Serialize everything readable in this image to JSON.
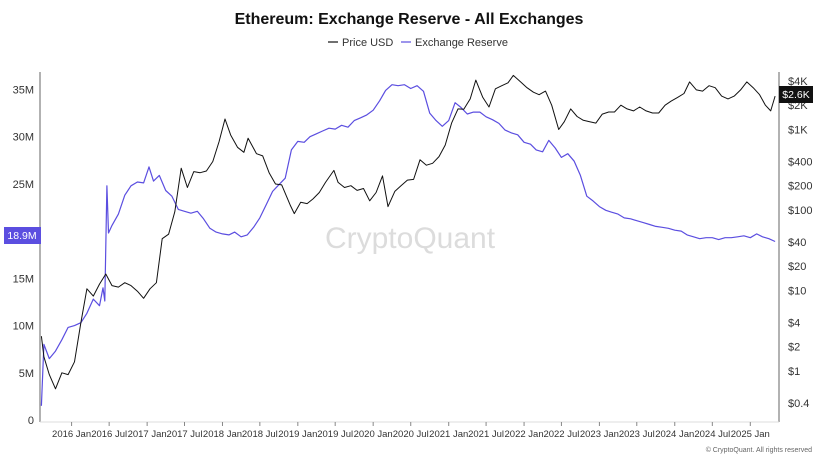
{
  "chart_data": {
    "type": "line",
    "title": "Ethereum: Exchange Reserve - All Exchanges",
    "legend": [
      {
        "name": "Price USD",
        "color": "#111111"
      },
      {
        "name": "Exchange Reserve",
        "color": "#5b4ee0"
      }
    ],
    "legend_position": "top-center",
    "watermark": "CryptoQuant",
    "credit": "© CryptoQuant. All rights reserved",
    "x_ticks": [
      "2016 Jan",
      "2016 Jul",
      "2017 Jan",
      "2017 Jul",
      "2018 Jan",
      "2018 Jul",
      "2019 Jan",
      "2019 Jul",
      "2020 Jan",
      "2020 Jul",
      "2021 Jan",
      "2021 Jul",
      "2022 Jan",
      "2022 Jul",
      "2023 Jan",
      "2023 Jul",
      "2024 Jan",
      "2024 Jul",
      "2025 Jan"
    ],
    "y_left": {
      "label": "Exchange Reserve",
      "ticks": [
        "0",
        "5M",
        "10M",
        "15M",
        "20M",
        "25M",
        "30M",
        "35M"
      ],
      "range": [
        0,
        36000000
      ],
      "current_label": "18.9M"
    },
    "y_right": {
      "label": "Price USD",
      "scale": "log",
      "ticks": [
        "$0.4",
        "$1",
        "$2",
        "$4",
        "$10",
        "$20",
        "$40",
        "$100",
        "$200",
        "$400",
        "$1K",
        "$2K",
        "$4K"
      ],
      "current_label": "$2.6K"
    },
    "grid": false,
    "series": [
      {
        "name": "Exchange Reserve",
        "axis": "left",
        "color": "#5b4ee0",
        "points": [
          [
            "2015-08-08",
            1500000
          ],
          [
            "2015-08-20",
            8000000
          ],
          [
            "2015-09-15",
            6500000
          ],
          [
            "2015-10-15",
            7300000
          ],
          [
            "2015-11-15",
            8500000
          ],
          [
            "2015-12-15",
            9800000
          ],
          [
            "2016-01-15",
            10000000
          ],
          [
            "2016-02-15",
            10300000
          ],
          [
            "2016-03-15",
            11300000
          ],
          [
            "2016-04-15",
            12800000
          ],
          [
            "2016-05-15",
            12100000
          ],
          [
            "2016-06-01",
            14000000
          ],
          [
            "2016-06-10",
            12600000
          ],
          [
            "2016-06-20",
            24800000
          ],
          [
            "2016-06-28",
            19800000
          ],
          [
            "2016-07-15",
            20600000
          ],
          [
            "2016-08-15",
            21800000
          ],
          [
            "2016-09-15",
            23800000
          ],
          [
            "2016-10-15",
            24800000
          ],
          [
            "2016-11-15",
            25200000
          ],
          [
            "2016-12-15",
            25100000
          ],
          [
            "2017-01-10",
            26800000
          ],
          [
            "2017-02-01",
            25300000
          ],
          [
            "2017-03-01",
            25900000
          ],
          [
            "2017-04-01",
            24300000
          ],
          [
            "2017-05-01",
            23700000
          ],
          [
            "2017-06-01",
            22300000
          ],
          [
            "2017-07-01",
            22100000
          ],
          [
            "2017-08-01",
            21900000
          ],
          [
            "2017-09-01",
            22100000
          ],
          [
            "2017-10-01",
            21300000
          ],
          [
            "2017-11-01",
            20300000
          ],
          [
            "2017-12-01",
            19900000
          ],
          [
            "2018-01-01",
            19700000
          ],
          [
            "2018-02-01",
            19600000
          ],
          [
            "2018-03-01",
            19900000
          ],
          [
            "2018-04-01",
            19400000
          ],
          [
            "2018-05-01",
            19600000
          ],
          [
            "2018-06-01",
            20400000
          ],
          [
            "2018-07-01",
            21400000
          ],
          [
            "2018-08-01",
            22800000
          ],
          [
            "2018-09-01",
            24200000
          ],
          [
            "2018-10-01",
            24900000
          ],
          [
            "2018-11-01",
            25600000
          ],
          [
            "2018-12-01",
            28600000
          ],
          [
            "2019-01-01",
            29500000
          ],
          [
            "2019-02-01",
            29400000
          ],
          [
            "2019-03-01",
            30000000
          ],
          [
            "2019-04-01",
            30300000
          ],
          [
            "2019-05-01",
            30600000
          ],
          [
            "2019-06-01",
            30900000
          ],
          [
            "2019-07-01",
            30800000
          ],
          [
            "2019-08-01",
            31200000
          ],
          [
            "2019-09-01",
            31000000
          ],
          [
            "2019-10-01",
            31700000
          ],
          [
            "2019-11-01",
            32000000
          ],
          [
            "2019-12-01",
            32300000
          ],
          [
            "2020-01-01",
            32800000
          ],
          [
            "2020-02-01",
            33800000
          ],
          [
            "2020-03-01",
            34900000
          ],
          [
            "2020-04-01",
            35500000
          ],
          [
            "2020-05-01",
            35400000
          ],
          [
            "2020-06-01",
            35500000
          ],
          [
            "2020-07-01",
            35100000
          ],
          [
            "2020-08-01",
            35400000
          ],
          [
            "2020-09-01",
            34800000
          ],
          [
            "2020-10-01",
            32500000
          ],
          [
            "2020-11-01",
            31700000
          ],
          [
            "2020-12-01",
            31100000
          ],
          [
            "2021-01-01",
            31700000
          ],
          [
            "2021-02-01",
            33600000
          ],
          [
            "2021-03-01",
            33100000
          ],
          [
            "2021-04-01",
            32400000
          ],
          [
            "2021-05-01",
            32600000
          ],
          [
            "2021-06-01",
            32600000
          ],
          [
            "2021-07-01",
            32100000
          ],
          [
            "2021-08-01",
            31800000
          ],
          [
            "2021-09-01",
            31400000
          ],
          [
            "2021-10-01",
            30700000
          ],
          [
            "2021-11-01",
            30400000
          ],
          [
            "2021-12-01",
            30200000
          ],
          [
            "2022-01-01",
            29400000
          ],
          [
            "2022-02-01",
            29200000
          ],
          [
            "2022-03-01",
            28600000
          ],
          [
            "2022-04-01",
            28400000
          ],
          [
            "2022-05-01",
            29600000
          ],
          [
            "2022-06-01",
            28800000
          ],
          [
            "2022-07-01",
            27800000
          ],
          [
            "2022-08-01",
            28200000
          ],
          [
            "2022-09-01",
            27400000
          ],
          [
            "2022-10-01",
            25900000
          ],
          [
            "2022-11-01",
            23700000
          ],
          [
            "2022-12-01",
            23200000
          ],
          [
            "2023-01-01",
            22600000
          ],
          [
            "2023-02-01",
            22200000
          ],
          [
            "2023-03-01",
            22000000
          ],
          [
            "2023-04-01",
            21800000
          ],
          [
            "2023-05-01",
            21400000
          ],
          [
            "2023-06-01",
            21300000
          ],
          [
            "2023-07-01",
            21100000
          ],
          [
            "2023-08-01",
            20900000
          ],
          [
            "2023-09-01",
            20700000
          ],
          [
            "2023-10-01",
            20500000
          ],
          [
            "2023-11-01",
            20400000
          ],
          [
            "2023-12-01",
            20300000
          ],
          [
            "2024-01-01",
            20100000
          ],
          [
            "2024-02-01",
            20000000
          ],
          [
            "2024-03-01",
            19600000
          ],
          [
            "2024-04-01",
            19400000
          ],
          [
            "2024-05-01",
            19200000
          ],
          [
            "2024-06-01",
            19300000
          ],
          [
            "2024-07-01",
            19300000
          ],
          [
            "2024-08-01",
            19100000
          ],
          [
            "2024-09-01",
            19300000
          ],
          [
            "2024-10-01",
            19300000
          ],
          [
            "2024-11-01",
            19400000
          ],
          [
            "2024-12-01",
            19500000
          ],
          [
            "2025-01-01",
            19300000
          ],
          [
            "2025-02-01",
            19700000
          ],
          [
            "2025-03-01",
            19400000
          ],
          [
            "2025-04-01",
            19200000
          ],
          [
            "2025-05-01",
            18900000
          ]
        ]
      },
      {
        "name": "Price USD",
        "axis": "right",
        "color": "#111111",
        "points": [
          [
            "2015-08-08",
            2.7
          ],
          [
            "2015-08-20",
            1.5
          ],
          [
            "2015-09-15",
            0.9
          ],
          [
            "2015-10-15",
            0.6
          ],
          [
            "2015-11-15",
            0.95
          ],
          [
            "2015-12-15",
            0.9
          ],
          [
            "2016-01-15",
            1.3
          ],
          [
            "2016-02-15",
            4.0
          ],
          [
            "2016-03-15",
            10.5
          ],
          [
            "2016-04-15",
            8.5
          ],
          [
            "2016-05-15",
            12.0
          ],
          [
            "2016-06-15",
            16.0
          ],
          [
            "2016-07-15",
            11.5
          ],
          [
            "2016-08-15",
            11.0
          ],
          [
            "2016-09-15",
            12.5
          ],
          [
            "2016-10-15",
            11.5
          ],
          [
            "2016-11-15",
            9.8
          ],
          [
            "2016-12-15",
            8.0
          ],
          [
            "2017-01-15",
            10.5
          ],
          [
            "2017-02-15",
            12.5
          ],
          [
            "2017-03-15",
            44.0
          ],
          [
            "2017-04-15",
            50.0
          ],
          [
            "2017-05-15",
            95.0
          ],
          [
            "2017-06-15",
            330.0
          ],
          [
            "2017-07-15",
            190.0
          ],
          [
            "2017-08-15",
            300.0
          ],
          [
            "2017-09-15",
            290.0
          ],
          [
            "2017-10-15",
            305.0
          ],
          [
            "2017-11-15",
            400.0
          ],
          [
            "2017-12-15",
            700.0
          ],
          [
            "2018-01-13",
            1350.0
          ],
          [
            "2018-02-10",
            850.0
          ],
          [
            "2018-03-15",
            600.0
          ],
          [
            "2018-04-15",
            520.0
          ],
          [
            "2018-05-05",
            780.0
          ],
          [
            "2018-06-15",
            500.0
          ],
          [
            "2018-07-15",
            470.0
          ],
          [
            "2018-08-15",
            290.0
          ],
          [
            "2018-09-15",
            210.0
          ],
          [
            "2018-10-15",
            205.0
          ],
          [
            "2018-11-25",
            115.0
          ],
          [
            "2018-12-15",
            90.0
          ],
          [
            "2019-01-15",
            125.0
          ],
          [
            "2019-02-15",
            120.0
          ],
          [
            "2019-03-15",
            137.0
          ],
          [
            "2019-04-15",
            165.0
          ],
          [
            "2019-05-15",
            220.0
          ],
          [
            "2019-06-25",
            310.0
          ],
          [
            "2019-07-15",
            220.0
          ],
          [
            "2019-08-15",
            190.0
          ],
          [
            "2019-09-15",
            200.0
          ],
          [
            "2019-10-15",
            175.0
          ],
          [
            "2019-11-15",
            185.0
          ],
          [
            "2019-12-15",
            130.0
          ],
          [
            "2020-01-15",
            165.0
          ],
          [
            "2020-02-15",
            265.0
          ],
          [
            "2020-03-13",
            110.0
          ],
          [
            "2020-04-15",
            170.0
          ],
          [
            "2020-05-15",
            200.0
          ],
          [
            "2020-06-15",
            235.0
          ],
          [
            "2020-07-15",
            240.0
          ],
          [
            "2020-08-15",
            420.0
          ],
          [
            "2020-09-15",
            360.0
          ],
          [
            "2020-10-15",
            380.0
          ],
          [
            "2020-11-15",
            460.0
          ],
          [
            "2020-12-15",
            640.0
          ],
          [
            "2021-01-15",
            1200.0
          ],
          [
            "2021-02-15",
            1800.0
          ],
          [
            "2021-03-15",
            1780.0
          ],
          [
            "2021-04-15",
            2400.0
          ],
          [
            "2021-05-12",
            4100.0
          ],
          [
            "2021-06-15",
            2500.0
          ],
          [
            "2021-07-15",
            1900.0
          ],
          [
            "2021-08-15",
            3200.0
          ],
          [
            "2021-09-15",
            3500.0
          ],
          [
            "2021-10-15",
            3800.0
          ],
          [
            "2021-11-10",
            4700.0
          ],
          [
            "2021-12-15",
            3900.0
          ],
          [
            "2022-01-15",
            3300.0
          ],
          [
            "2022-02-15",
            2900.0
          ],
          [
            "2022-03-15",
            2700.0
          ],
          [
            "2022-04-15",
            3000.0
          ],
          [
            "2022-05-15",
            2000.0
          ],
          [
            "2022-06-18",
            1000.0
          ],
          [
            "2022-07-15",
            1250.0
          ],
          [
            "2022-08-15",
            1800.0
          ],
          [
            "2022-09-15",
            1450.0
          ],
          [
            "2022-10-15",
            1300.0
          ],
          [
            "2022-11-15",
            1250.0
          ],
          [
            "2022-12-15",
            1200.0
          ],
          [
            "2023-01-15",
            1550.0
          ],
          [
            "2023-02-15",
            1650.0
          ],
          [
            "2023-03-15",
            1650.0
          ],
          [
            "2023-04-15",
            2000.0
          ],
          [
            "2023-05-15",
            1800.0
          ],
          [
            "2023-06-15",
            1700.0
          ],
          [
            "2023-07-15",
            1900.0
          ],
          [
            "2023-08-15",
            1700.0
          ],
          [
            "2023-09-15",
            1600.0
          ],
          [
            "2023-10-15",
            1600.0
          ],
          [
            "2023-11-15",
            2000.0
          ],
          [
            "2023-12-15",
            2250.0
          ],
          [
            "2024-01-15",
            2500.0
          ],
          [
            "2024-02-15",
            2800.0
          ],
          [
            "2024-03-13",
            3900.0
          ],
          [
            "2024-04-15",
            3100.0
          ],
          [
            "2024-05-15",
            3000.0
          ],
          [
            "2024-06-15",
            3500.0
          ],
          [
            "2024-07-15",
            3300.0
          ],
          [
            "2024-08-15",
            2600.0
          ],
          [
            "2024-09-15",
            2400.0
          ],
          [
            "2024-10-15",
            2600.0
          ],
          [
            "2024-11-15",
            3100.0
          ],
          [
            "2024-12-15",
            3900.0
          ],
          [
            "2025-01-15",
            3300.0
          ],
          [
            "2025-02-15",
            2700.0
          ],
          [
            "2025-03-15",
            2000.0
          ],
          [
            "2025-04-10",
            1700.0
          ],
          [
            "2025-05-01",
            2600.0
          ]
        ]
      }
    ]
  }
}
